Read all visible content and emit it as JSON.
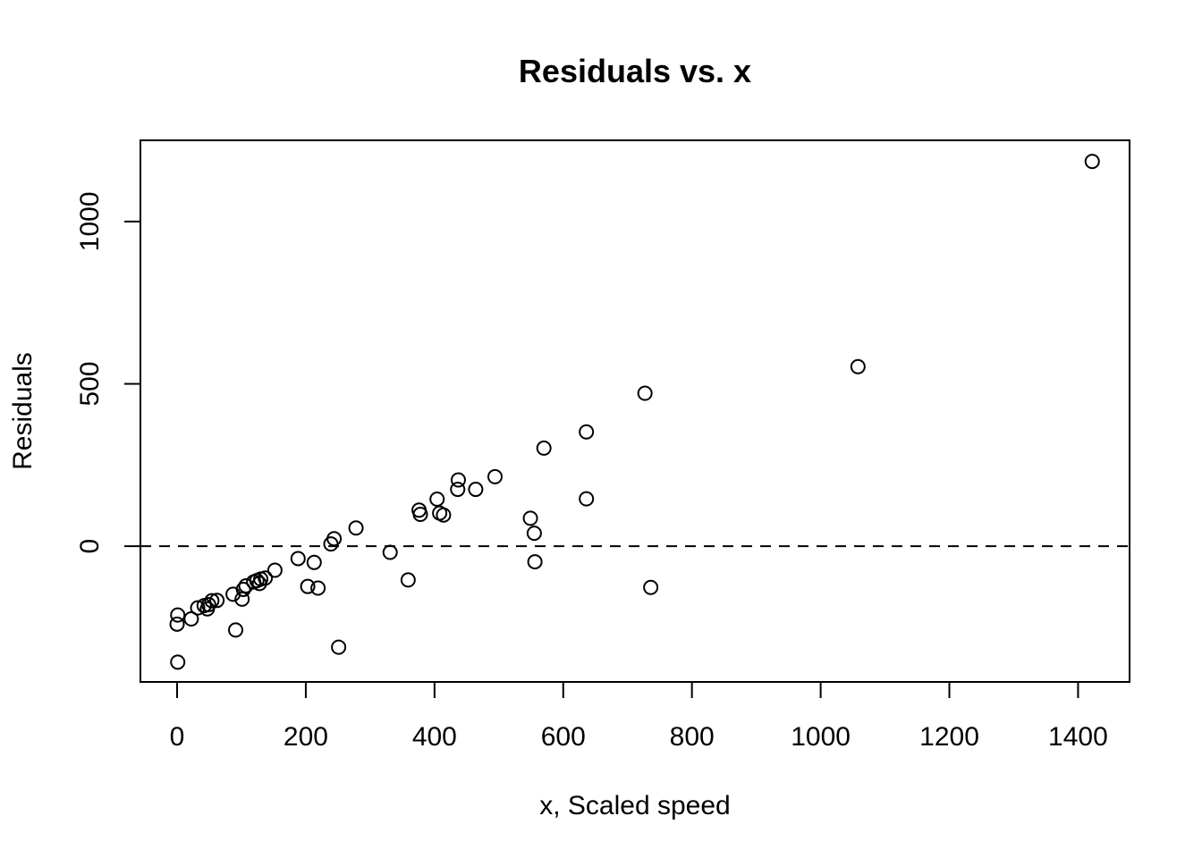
{
  "chart_data": {
    "type": "scatter",
    "title": "Residuals vs. x",
    "xlabel": "x, Scaled speed",
    "ylabel": "Residuals",
    "xlim": [
      -57,
      1480
    ],
    "ylim": [
      -418,
      1250
    ],
    "x_ticks": [
      0,
      200,
      400,
      600,
      800,
      1000,
      1200,
      1400
    ],
    "x_tick_labels": [
      "0",
      "200",
      "400",
      "600",
      "800",
      "1000",
      "1200",
      "1400"
    ],
    "y_ticks": [
      0,
      500,
      1000
    ],
    "y_tick_labels": [
      "0",
      "500",
      "1000"
    ],
    "reference_line": {
      "y": 0,
      "style": "dashed"
    },
    "grid": false,
    "legend": "none",
    "marker": "open-circle",
    "points": [
      {
        "x": 1,
        "y": -212
      },
      {
        "x": 0,
        "y": -240
      },
      {
        "x": 1,
        "y": -357
      },
      {
        "x": 22,
        "y": -224
      },
      {
        "x": 32,
        "y": -190
      },
      {
        "x": 42,
        "y": -183
      },
      {
        "x": 47,
        "y": -193
      },
      {
        "x": 49,
        "y": -180
      },
      {
        "x": 54,
        "y": -168
      },
      {
        "x": 62,
        "y": -167
      },
      {
        "x": 87,
        "y": -148
      },
      {
        "x": 91,
        "y": -258
      },
      {
        "x": 101,
        "y": -163
      },
      {
        "x": 103,
        "y": -133
      },
      {
        "x": 107,
        "y": -122
      },
      {
        "x": 119,
        "y": -110
      },
      {
        "x": 124,
        "y": -106
      },
      {
        "x": 128,
        "y": -115
      },
      {
        "x": 130,
        "y": -101
      },
      {
        "x": 137,
        "y": -98
      },
      {
        "x": 152,
        "y": -74
      },
      {
        "x": 188,
        "y": -38
      },
      {
        "x": 203,
        "y": -124
      },
      {
        "x": 213,
        "y": -50
      },
      {
        "x": 219,
        "y": -129
      },
      {
        "x": 239,
        "y": 7
      },
      {
        "x": 244,
        "y": 23
      },
      {
        "x": 251,
        "y": -311
      },
      {
        "x": 278,
        "y": 56
      },
      {
        "x": 331,
        "y": -19
      },
      {
        "x": 359,
        "y": -104
      },
      {
        "x": 376,
        "y": 111
      },
      {
        "x": 378,
        "y": 98
      },
      {
        "x": 404,
        "y": 145
      },
      {
        "x": 408,
        "y": 102
      },
      {
        "x": 414,
        "y": 96
      },
      {
        "x": 436,
        "y": 175
      },
      {
        "x": 437,
        "y": 204
      },
      {
        "x": 464,
        "y": 175
      },
      {
        "x": 494,
        "y": 214
      },
      {
        "x": 549,
        "y": 86
      },
      {
        "x": 555,
        "y": 40
      },
      {
        "x": 556,
        "y": -48
      },
      {
        "x": 570,
        "y": 302
      },
      {
        "x": 636,
        "y": 352
      },
      {
        "x": 636,
        "y": 146
      },
      {
        "x": 727,
        "y": 471
      },
      {
        "x": 736,
        "y": -127
      },
      {
        "x": 1058,
        "y": 553
      },
      {
        "x": 1422,
        "y": 1185
      }
    ]
  }
}
